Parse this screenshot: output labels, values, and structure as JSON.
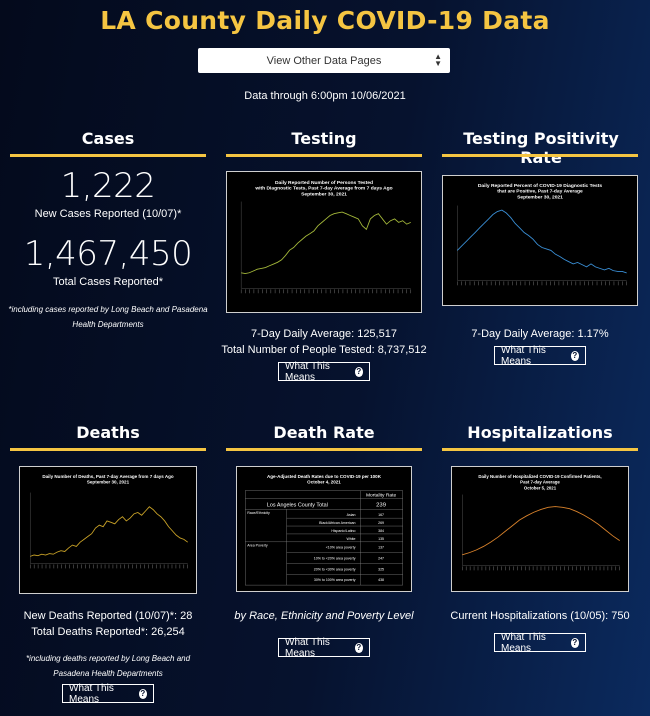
{
  "header": {
    "title": "LA County Daily COVID-19 Data",
    "select_value": "View Other Data Pages",
    "data_through": "Data through 6:00pm 10/06/2021"
  },
  "sections": {
    "cases": {
      "title": "Cases",
      "new_value": "1,222",
      "new_label": "New Cases Reported (10/07)*",
      "total_value": "1,467,450",
      "total_label": "Total Cases Reported*",
      "note_line1": "*including cases reported by Long Beach and Pasadena",
      "note_line2": "Health Departments"
    },
    "testing": {
      "title": "Testing",
      "chart_title_1": "Daily Reported Number of Persons Tested",
      "chart_title_2": "with Diagnostic Tests, Past 7-day Average from 7 days Ago",
      "chart_title_3": "September 30, 2021",
      "avg": "7-Day Daily Average: 125,517",
      "total": "Total Number of People Tested: 8,737,512",
      "button": "What This Means"
    },
    "positivity": {
      "title": "Testing Positivity Rate",
      "chart_title_1": "Daily Reported Percent of COVID-19 Diagnostic Tests",
      "chart_title_2": "that are Positive, Past 7-day Average",
      "chart_title_3": "September 30, 2021",
      "avg": "7-Day Daily Average: 1.17%",
      "button": "What This Means"
    },
    "deaths": {
      "title": "Deaths",
      "chart_title_1": "Daily Number of Deaths, Past 7-day Average from 7 days Ago",
      "chart_title_2": "September 30, 2021",
      "new": "New Deaths Reported (10/07)*: 28",
      "total": "Total Deaths Reported*: 26,254",
      "note_line1": "*including deaths reported by Long Beach and",
      "note_line2": "Pasadena Health Departments",
      "button": "What This Means"
    },
    "death_rate": {
      "title": "Death Rate",
      "table_title_1": "Age-Adjusted Death Rates due to COVID-19 per 100K",
      "table_title_2": "October 4, 2021",
      "col_header": "Mortality Rate",
      "county_label": "Los Angeles County Total",
      "county_value": "239",
      "group_race": "Race/Ethnicity",
      "group_poverty": "Area Poverty",
      "rows": [
        {
          "label": "Asian",
          "value": "167"
        },
        {
          "label": "Black/African American",
          "value": "269"
        },
        {
          "label": "Hispanic/Latino",
          "value": "384"
        },
        {
          "label": "White",
          "value": "135"
        },
        {
          "label": "<10% area poverty",
          "value": "137"
        },
        {
          "label": "10% to <20% area poverty",
          "value": "247"
        },
        {
          "label": "20% to <30% area poverty",
          "value": "325"
        },
        {
          "label": "30% to 100% area poverty",
          "value": "438"
        }
      ],
      "caption": "by Race, Ethnicity and Poverty Level",
      "button": "What This Means"
    },
    "hospitalizations": {
      "title": "Hospitalizations",
      "chart_title_1": "Daily Number of Hospitalized COVID-19 Confirmed Patients,",
      "chart_title_2": "Past 7-day Average",
      "chart_title_3": "October 5, 2021",
      "current": "Current Hospitalizations (10/05): 750",
      "button": "What This Means"
    }
  },
  "colors": {
    "accent": "#f5c542",
    "testing_line": "#a4b83a",
    "positivity_line": "#3a8fd6",
    "deaths_line": "#c9a227",
    "hosp_line": "#d9822b"
  },
  "chart_data": [
    {
      "type": "line",
      "title": "Daily Reported Number of Persons Tested with Diagnostic Tests, Past 7-day Average from 7 days Ago September 30, 2021",
      "values": [
        18,
        17,
        18,
        20,
        22,
        23,
        24,
        26,
        28,
        30,
        33,
        38,
        44,
        47,
        52,
        56,
        60,
        63,
        66,
        72,
        76,
        80,
        84,
        86,
        87,
        88,
        86,
        84,
        82,
        80,
        72,
        68,
        80,
        84,
        86,
        80,
        74,
        78,
        80,
        76,
        78,
        74,
        76
      ],
      "ylim": [
        0,
        100
      ]
    },
    {
      "type": "line",
      "title": "Daily Reported Percent of COVID-19 Diagnostic Tests that are Positive, Past 7-day Average September 30, 2021",
      "values": [
        40,
        46,
        52,
        58,
        64,
        70,
        76,
        82,
        88,
        92,
        94,
        90,
        84,
        76,
        70,
        64,
        60,
        55,
        48,
        44,
        42,
        40,
        35,
        32,
        28,
        25,
        22,
        24,
        21,
        18,
        22,
        18,
        16,
        14,
        16,
        13,
        12,
        12,
        10
      ],
      "ylim": [
        0,
        100
      ]
    },
    {
      "type": "line",
      "title": "Daily Number of Deaths, Past 7-day Average from 7 days Ago September 30, 2021",
      "values": [
        10,
        12,
        11,
        13,
        12,
        14,
        13,
        16,
        18,
        17,
        22,
        26,
        24,
        30,
        34,
        38,
        42,
        50,
        54,
        52,
        60,
        58,
        56,
        62,
        66,
        60,
        64,
        70,
        72,
        68,
        74,
        80,
        76,
        70,
        66,
        60,
        52,
        46,
        40,
        36,
        34,
        30
      ],
      "ylim": [
        0,
        100
      ]
    },
    {
      "type": "line",
      "title": "Daily Number of Hospitalized COVID-19 Confirmed Patients, Past 7-day Average October 5, 2021",
      "values": [
        15,
        18,
        22,
        27,
        33,
        40,
        48,
        56,
        64,
        70,
        75,
        79,
        82,
        83,
        82,
        80,
        76,
        71,
        65,
        58,
        50,
        42,
        35
      ],
      "ylim": [
        0,
        100
      ]
    }
  ]
}
